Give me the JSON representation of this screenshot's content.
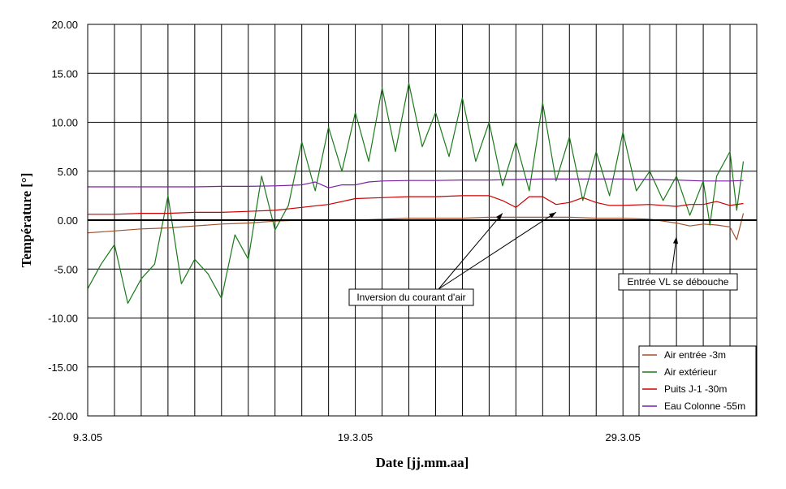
{
  "chart_data": {
    "type": "line",
    "title": "",
    "xlabel": "Date [jj.mm.aa]",
    "ylabel": "Température [°]",
    "ylim": [
      -20,
      20
    ],
    "xlim": [
      "2005-03-09",
      "2005-04-03"
    ],
    "grid": true,
    "y_ticks": [
      "20.00",
      "15.00",
      "10.00",
      "5.00",
      "0.00",
      "-5.00",
      "-10.00",
      "-15.00",
      "-20.00"
    ],
    "x_ticks": [
      {
        "date": "2005-03-09",
        "label": "9.3.05"
      },
      {
        "date": "2005-03-19",
        "label": "19.3.05"
      },
      {
        "date": "2005-03-29",
        "label": "29.3.05"
      }
    ],
    "legend_position": "bottom-right",
    "series": [
      {
        "name": "Air entrée -3m",
        "color": "#a0522d",
        "points": [
          [
            "2005-03-09",
            -1.3
          ],
          [
            "2005-03-10",
            -1.1
          ],
          [
            "2005-03-11",
            -0.9
          ],
          [
            "2005-03-12",
            -0.8
          ],
          [
            "2005-03-13",
            -0.6
          ],
          [
            "2005-03-14",
            -0.4
          ],
          [
            "2005-03-15",
            -0.3
          ],
          [
            "2005-03-16",
            -0.1
          ],
          [
            "2005-03-17",
            0.0
          ],
          [
            "2005-03-18",
            0.0
          ],
          [
            "2005-03-19",
            0.0
          ],
          [
            "2005-03-20",
            0.1
          ],
          [
            "2005-03-21",
            0.2
          ],
          [
            "2005-03-22",
            0.2
          ],
          [
            "2005-03-23",
            0.2
          ],
          [
            "2005-03-24",
            0.3
          ],
          [
            "2005-03-25",
            0.3
          ],
          [
            "2005-03-26",
            0.3
          ],
          [
            "2005-03-27",
            0.3
          ],
          [
            "2005-03-28",
            0.2
          ],
          [
            "2005-03-29",
            0.2
          ],
          [
            "2005-03-30",
            0.1
          ],
          [
            "2005-03-30 12:00",
            -0.1
          ],
          [
            "2005-03-31",
            -0.3
          ],
          [
            "2005-03-31 12:00",
            -0.6
          ],
          [
            "2005-04-01",
            -0.4
          ],
          [
            "2005-04-01 12:00",
            -0.5
          ],
          [
            "2005-04-02",
            -0.7
          ],
          [
            "2005-04-02 06:00",
            -2.0
          ],
          [
            "2005-04-02 12:00",
            0.7
          ]
        ]
      },
      {
        "name": "Air extérieur",
        "color": "#1a7a1a",
        "points": [
          [
            "2005-03-09",
            -7.0
          ],
          [
            "2005-03-09 12:00",
            -4.5
          ],
          [
            "2005-03-10",
            -2.5
          ],
          [
            "2005-03-10 12:00",
            -8.5
          ],
          [
            "2005-03-11",
            -6.0
          ],
          [
            "2005-03-11 12:00",
            -4.5
          ],
          [
            "2005-03-12",
            2.5
          ],
          [
            "2005-03-12 12:00",
            -6.5
          ],
          [
            "2005-03-13",
            -4.0
          ],
          [
            "2005-03-13 12:00",
            -5.5
          ],
          [
            "2005-03-14",
            -8.0
          ],
          [
            "2005-03-14 12:00",
            -1.5
          ],
          [
            "2005-03-15",
            -4.0
          ],
          [
            "2005-03-15 12:00",
            4.5
          ],
          [
            "2005-03-16",
            -1.0
          ],
          [
            "2005-03-16 12:00",
            1.5
          ],
          [
            "2005-03-17",
            8.0
          ],
          [
            "2005-03-17 12:00",
            3.0
          ],
          [
            "2005-03-18",
            9.5
          ],
          [
            "2005-03-18 12:00",
            5.0
          ],
          [
            "2005-03-19",
            11.0
          ],
          [
            "2005-03-19 12:00",
            6.0
          ],
          [
            "2005-03-20",
            13.5
          ],
          [
            "2005-03-20 12:00",
            7.0
          ],
          [
            "2005-03-21",
            14.0
          ],
          [
            "2005-03-21 12:00",
            7.5
          ],
          [
            "2005-03-22",
            11.0
          ],
          [
            "2005-03-22 12:00",
            6.5
          ],
          [
            "2005-03-23",
            12.5
          ],
          [
            "2005-03-23 12:00",
            6.0
          ],
          [
            "2005-03-24",
            10.0
          ],
          [
            "2005-03-24 12:00",
            3.5
          ],
          [
            "2005-03-25",
            8.0
          ],
          [
            "2005-03-25 12:00",
            3.0
          ],
          [
            "2005-03-26",
            12.0
          ],
          [
            "2005-03-26 12:00",
            4.0
          ],
          [
            "2005-03-27",
            8.5
          ],
          [
            "2005-03-27 12:00",
            2.0
          ],
          [
            "2005-03-28",
            7.0
          ],
          [
            "2005-03-28 12:00",
            2.5
          ],
          [
            "2005-03-29",
            9.0
          ],
          [
            "2005-03-29 12:00",
            3.0
          ],
          [
            "2005-03-30",
            5.0
          ],
          [
            "2005-03-30 12:00",
            2.0
          ],
          [
            "2005-03-31",
            4.5
          ],
          [
            "2005-03-31 12:00",
            0.5
          ],
          [
            "2005-04-01",
            4.0
          ],
          [
            "2005-04-01 06:00",
            -0.5
          ],
          [
            "2005-04-01 12:00",
            4.5
          ],
          [
            "2005-04-02",
            7.0
          ],
          [
            "2005-04-02 06:00",
            1.0
          ],
          [
            "2005-04-02 12:00",
            6.0
          ]
        ]
      },
      {
        "name": "Puits J-1 -30m",
        "color": "#cc0000",
        "points": [
          [
            "2005-03-09",
            0.6
          ],
          [
            "2005-03-10",
            0.6
          ],
          [
            "2005-03-11",
            0.7
          ],
          [
            "2005-03-12",
            0.7
          ],
          [
            "2005-03-13",
            0.8
          ],
          [
            "2005-03-14",
            0.8
          ],
          [
            "2005-03-15",
            0.9
          ],
          [
            "2005-03-16",
            1.0
          ],
          [
            "2005-03-17",
            1.3
          ],
          [
            "2005-03-18",
            1.6
          ],
          [
            "2005-03-19",
            2.2
          ],
          [
            "2005-03-20",
            2.3
          ],
          [
            "2005-03-21",
            2.4
          ],
          [
            "2005-03-22",
            2.4
          ],
          [
            "2005-03-23",
            2.5
          ],
          [
            "2005-03-24",
            2.5
          ],
          [
            "2005-03-24 12:00",
            2.0
          ],
          [
            "2005-03-25",
            1.3
          ],
          [
            "2005-03-25 12:00",
            2.4
          ],
          [
            "2005-03-26",
            2.4
          ],
          [
            "2005-03-26 12:00",
            1.6
          ],
          [
            "2005-03-27",
            1.8
          ],
          [
            "2005-03-27 12:00",
            2.3
          ],
          [
            "2005-03-28",
            1.8
          ],
          [
            "2005-03-28 12:00",
            1.5
          ],
          [
            "2005-03-29",
            1.5
          ],
          [
            "2005-03-30",
            1.6
          ],
          [
            "2005-03-31",
            1.4
          ],
          [
            "2005-03-31 12:00",
            1.6
          ],
          [
            "2005-04-01",
            1.6
          ],
          [
            "2005-04-01 12:00",
            1.9
          ],
          [
            "2005-04-02",
            1.5
          ],
          [
            "2005-04-02 12:00",
            1.7
          ]
        ]
      },
      {
        "name": "Eau Colonne -55m",
        "color": "#7b1fa2",
        "points": [
          [
            "2005-03-09",
            3.4
          ],
          [
            "2005-03-10",
            3.4
          ],
          [
            "2005-03-11",
            3.4
          ],
          [
            "2005-03-12",
            3.4
          ],
          [
            "2005-03-13",
            3.4
          ],
          [
            "2005-03-14",
            3.45
          ],
          [
            "2005-03-15",
            3.45
          ],
          [
            "2005-03-16",
            3.5
          ],
          [
            "2005-03-17",
            3.6
          ],
          [
            "2005-03-17 12:00",
            3.9
          ],
          [
            "2005-03-18",
            3.3
          ],
          [
            "2005-03-18 12:00",
            3.6
          ],
          [
            "2005-03-19",
            3.6
          ],
          [
            "2005-03-19 12:00",
            3.9
          ],
          [
            "2005-03-20",
            4.0
          ],
          [
            "2005-03-21",
            4.05
          ],
          [
            "2005-03-22",
            4.05
          ],
          [
            "2005-03-23",
            4.1
          ],
          [
            "2005-03-24",
            4.1
          ],
          [
            "2005-03-25",
            4.15
          ],
          [
            "2005-03-26",
            4.2
          ],
          [
            "2005-03-27",
            4.2
          ],
          [
            "2005-03-28",
            4.2
          ],
          [
            "2005-03-29",
            4.2
          ],
          [
            "2005-03-30",
            4.15
          ],
          [
            "2005-03-31",
            4.1
          ],
          [
            "2005-04-01",
            4.0
          ],
          [
            "2005-04-02",
            4.0
          ],
          [
            "2005-04-02 12:00",
            4.05
          ]
        ]
      }
    ],
    "annotations": [
      {
        "name": "annotation-inversion",
        "text": "Inversion du courant d'air",
        "targets": [
          [
            "2005-03-24 12:00",
            1.2
          ],
          [
            "2005-03-26 12:00",
            1.3
          ]
        ]
      },
      {
        "name": "annotation-entree-vl",
        "text": "Entrée VL se débouche",
        "targets": [
          [
            "2005-03-31",
            -1.2
          ]
        ]
      }
    ]
  }
}
